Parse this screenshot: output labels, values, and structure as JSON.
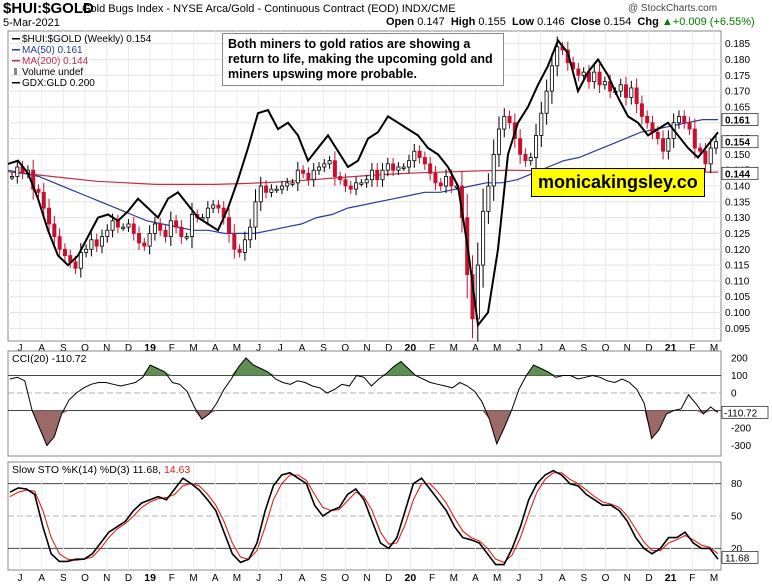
{
  "header": {
    "symbol": "$HUI:$GOLD",
    "description": "Gold Bugs Index - NYSE Arca/Gold - Continuous Contract (EOD)  INDX/CME",
    "credit": "@ StockCharts.com",
    "date": "5-Mar-2021",
    "open_label": "Open",
    "open": "0.147",
    "high_label": "High",
    "high": "0.155",
    "low_label": "Low",
    "low": "0.146",
    "close_label": "Close",
    "close": "0.154",
    "chg_label": "Chg",
    "chg": "+0.009 (+6.55%)",
    "chg_arrow": "▲"
  },
  "annotation": "Both miners to gold ratios are showing a return to life, making the upcoming gold and miners upswing more probable.",
  "brand": "monicakingsley.co",
  "colors": {
    "up": "#000000",
    "down": "#c8102e",
    "ma50": "#2a3a9a",
    "ma200": "#c0304a",
    "gdx": "#000000",
    "cci_pos": "#5f8f55",
    "cci_neg": "#9b6a68",
    "sto_d": "#e02020"
  },
  "chart_data": [
    {
      "type": "candlestick",
      "title": "$HUI:$GOLD (Weekly) 0.154",
      "legend": [
        {
          "label": "$HUI:$GOLD (Weekly) 0.154"
        },
        {
          "label": "MA(50) 0.161"
        },
        {
          "label": "MA(200) 0.144"
        },
        {
          "label": "Volume undef"
        },
        {
          "label": "GDX:GLD 0.200"
        }
      ],
      "ylim": [
        0.091,
        0.189
      ],
      "yticks": [
        "0.185",
        "0.180",
        "0.175",
        "0.170",
        "0.165",
        "0.160",
        "0.155",
        "0.150",
        "0.145",
        "0.140",
        "0.135",
        "0.130",
        "0.125",
        "0.120",
        "0.115",
        "0.110",
        "0.105",
        "0.100",
        "0.095"
      ],
      "ytick_values": [
        0.185,
        0.18,
        0.175,
        0.17,
        0.165,
        0.16,
        0.155,
        0.15,
        0.145,
        0.14,
        0.135,
        0.13,
        0.125,
        0.12,
        0.115,
        0.11,
        0.105,
        0.1,
        0.095
      ],
      "value_tags": [
        {
          "text": "0.161",
          "value": 0.161
        },
        {
          "text": "0.154",
          "value": 0.154
        },
        {
          "text": "0.144",
          "value": 0.144
        }
      ],
      "x_ticks": [
        "J",
        "A",
        "S",
        "O",
        "N",
        "D",
        "19",
        "F",
        "M",
        "A",
        "M",
        "J",
        "J",
        "A",
        "S",
        "O",
        "N",
        "D",
        "20",
        "F",
        "M",
        "A",
        "M",
        "J",
        "J",
        "A",
        "S",
        "O",
        "N",
        "D",
        "21",
        "F",
        "M"
      ],
      "closes": [
        0.143,
        0.146,
        0.144,
        0.145,
        0.139,
        0.138,
        0.133,
        0.128,
        0.124,
        0.12,
        0.118,
        0.116,
        0.114,
        0.119,
        0.12,
        0.123,
        0.121,
        0.124,
        0.126,
        0.129,
        0.127,
        0.127,
        0.128,
        0.125,
        0.122,
        0.121,
        0.125,
        0.128,
        0.126,
        0.124,
        0.129,
        0.127,
        0.124,
        0.124,
        0.131,
        0.13,
        0.13,
        0.133,
        0.134,
        0.133,
        0.13,
        0.125,
        0.12,
        0.119,
        0.123,
        0.127,
        0.135,
        0.14,
        0.138,
        0.139,
        0.139,
        0.14,
        0.141,
        0.141,
        0.145,
        0.144,
        0.142,
        0.145,
        0.146,
        0.147,
        0.148,
        0.143,
        0.142,
        0.14,
        0.139,
        0.141,
        0.141,
        0.142,
        0.145,
        0.142,
        0.145,
        0.147,
        0.145,
        0.146,
        0.146,
        0.148,
        0.151,
        0.149,
        0.147,
        0.144,
        0.141,
        0.14,
        0.143,
        0.14,
        0.14,
        0.13,
        0.112,
        0.098,
        0.115,
        0.132,
        0.14,
        0.15,
        0.158,
        0.162,
        0.16,
        0.155,
        0.15,
        0.148,
        0.149,
        0.156,
        0.163,
        0.17,
        0.178,
        0.184,
        0.183,
        0.179,
        0.177,
        0.175,
        0.176,
        0.173,
        0.176,
        0.172,
        0.173,
        0.17,
        0.17,
        0.172,
        0.168,
        0.171,
        0.166,
        0.162,
        0.16,
        0.157,
        0.155,
        0.151,
        0.155,
        0.16,
        0.162,
        0.16,
        0.158,
        0.152,
        0.151,
        0.147,
        0.152,
        0.154
      ],
      "ma50": [
        0.145,
        0.144,
        0.143,
        0.141,
        0.139,
        0.137,
        0.135,
        0.133,
        0.131,
        0.129,
        0.128,
        0.127,
        0.126,
        0.126,
        0.125,
        0.125,
        0.125,
        0.126,
        0.127,
        0.128,
        0.13,
        0.131,
        0.133,
        0.134,
        0.135,
        0.136,
        0.137,
        0.138,
        0.138,
        0.139,
        0.14,
        0.141,
        0.141,
        0.142,
        0.144,
        0.146,
        0.148,
        0.149,
        0.151,
        0.153,
        0.155,
        0.157,
        0.158,
        0.159,
        0.16,
        0.161,
        0.161
      ],
      "ma200": [
        0.1445,
        0.1435,
        0.1425,
        0.1415,
        0.141,
        0.1405,
        0.1405,
        0.1405,
        0.1408,
        0.1412,
        0.1418,
        0.1425,
        0.1432,
        0.1438,
        0.1442,
        0.1445,
        0.1448,
        0.145,
        0.1448,
        0.1446,
        0.1445,
        0.1444,
        0.1444,
        0.1444,
        0.1444
      ],
      "gdx_gld": [
        0.147,
        0.148,
        0.144,
        0.136,
        0.126,
        0.118,
        0.115,
        0.118,
        0.124,
        0.13,
        0.131,
        0.129,
        0.132,
        0.136,
        0.133,
        0.13,
        0.136,
        0.138,
        0.134,
        0.13,
        0.128,
        0.126,
        0.133,
        0.142,
        0.152,
        0.163,
        0.164,
        0.158,
        0.16,
        0.156,
        0.148,
        0.152,
        0.156,
        0.151,
        0.146,
        0.148,
        0.155,
        0.157,
        0.162,
        0.16,
        0.158,
        0.156,
        0.152,
        0.15,
        0.146,
        0.14,
        0.12,
        0.096,
        0.1,
        0.12,
        0.15,
        0.16,
        0.165,
        0.172,
        0.178,
        0.186,
        0.182,
        0.17,
        0.176,
        0.18,
        0.175,
        0.168,
        0.162,
        0.16,
        0.156,
        0.158,
        0.16,
        0.156,
        0.152,
        0.149,
        0.153,
        0.157
      ]
    },
    {
      "type": "line",
      "title": "CCI(20) -110.72",
      "ylim": [
        -360,
        240
      ],
      "yticks": [
        "200",
        "100",
        "0",
        "-100",
        "-200",
        "-300"
      ],
      "ytick_values": [
        200,
        100,
        0,
        -100,
        -200,
        -300
      ],
      "reference_lines": [
        100,
        0,
        -100
      ],
      "value_tag": "-110.72",
      "value_tag_value": -110.72,
      "values": [
        80,
        90,
        70,
        -100,
        -200,
        -300,
        -250,
        -120,
        -40,
        0,
        30,
        50,
        60,
        60,
        50,
        40,
        50,
        60,
        90,
        160,
        140,
        120,
        60,
        50,
        10,
        -80,
        -150,
        -120,
        -60,
        20,
        80,
        150,
        200,
        160,
        140,
        120,
        80,
        60,
        50,
        70,
        60,
        40,
        30,
        0,
        20,
        50,
        40,
        100,
        90,
        40,
        80,
        110,
        150,
        180,
        140,
        100,
        80,
        60,
        50,
        40,
        30,
        60,
        40,
        10,
        -50,
        -150,
        -290,
        -200,
        -100,
        20,
        100,
        160,
        140,
        120,
        90,
        100,
        100,
        80,
        90,
        100,
        90,
        70,
        60,
        80,
        60,
        20,
        -60,
        -260,
        -210,
        -120,
        -100,
        -90,
        -10,
        -60,
        -120,
        -80,
        -110
      ]
    },
    {
      "type": "line",
      "title": "Slow STO %K(14) %D(3) 11.68, 14.63",
      "k_value": "11.68",
      "d_value": "14.63",
      "ylim": [
        0,
        100
      ],
      "yticks": [
        "80",
        "50",
        "20"
      ],
      "ytick_values": [
        80,
        50,
        20
      ],
      "reference_lines": [
        80,
        50,
        20
      ],
      "value_tag": "11.68",
      "value_tag_value": 11.68,
      "k": [
        72,
        76,
        75,
        70,
        40,
        15,
        8,
        8,
        10,
        10,
        15,
        25,
        35,
        40,
        45,
        55,
        62,
        65,
        68,
        65,
        75,
        85,
        80,
        74,
        65,
        55,
        35,
        15,
        7,
        10,
        25,
        55,
        78,
        88,
        90,
        85,
        80,
        60,
        50,
        55,
        58,
        70,
        75,
        65,
        45,
        25,
        20,
        30,
        55,
        80,
        85,
        75,
        65,
        55,
        40,
        30,
        28,
        25,
        15,
        5,
        5,
        20,
        40,
        65,
        80,
        88,
        92,
        88,
        80,
        78,
        70,
        65,
        60,
        60,
        55,
        45,
        30,
        20,
        15,
        20,
        30,
        30,
        35,
        25,
        20,
        20,
        10
      ],
      "d": [
        68,
        72,
        74,
        73,
        55,
        30,
        15,
        10,
        9,
        10,
        12,
        20,
        30,
        38,
        43,
        50,
        58,
        63,
        66,
        67,
        70,
        78,
        80,
        78,
        70,
        60,
        45,
        25,
        12,
        10,
        18,
        40,
        65,
        80,
        88,
        88,
        83,
        70,
        58,
        55,
        56,
        64,
        72,
        68,
        55,
        35,
        24,
        25,
        42,
        65,
        80,
        80,
        72,
        62,
        48,
        36,
        30,
        27,
        20,
        10,
        7,
        14,
        30,
        52,
        72,
        84,
        90,
        90,
        84,
        80,
        74,
        68,
        63,
        61,
        58,
        50,
        38,
        26,
        18,
        18,
        25,
        28,
        32,
        28,
        23,
        21,
        15
      ]
    }
  ]
}
